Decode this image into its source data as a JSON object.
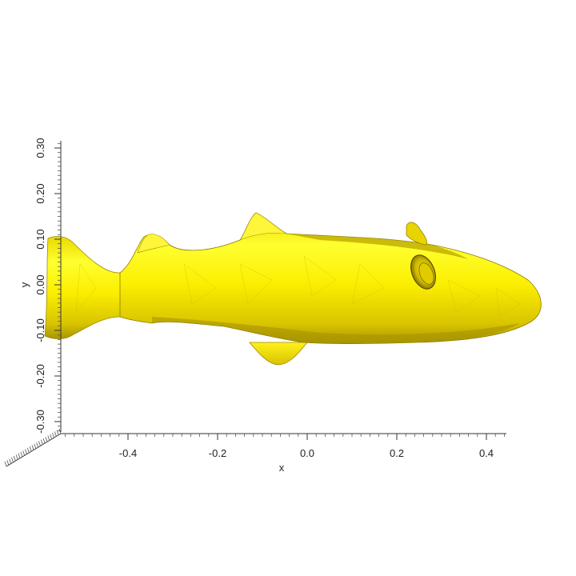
{
  "figure": {
    "object": "fish-mesh",
    "colors": {
      "mesh_fill": "#f7e600",
      "mesh_highlight": "#ffff3a",
      "mesh_shadow": "#a89400",
      "mesh_edge": "#7a6a00",
      "background": "#ffffff",
      "axis": "#333333"
    }
  },
  "axes": {
    "x": {
      "label": "x",
      "range": [
        -0.55,
        0.44
      ],
      "ticks": [
        -0.4,
        -0.2,
        0.0,
        0.2,
        0.4
      ],
      "tick_labels": [
        "-0.4",
        "-0.2",
        "0.0",
        "0.2",
        "0.4"
      ]
    },
    "y": {
      "label": "y",
      "range": [
        -0.33,
        0.32
      ],
      "ticks": [
        -0.3,
        -0.2,
        -0.1,
        0.0,
        0.1,
        0.2,
        0.3
      ],
      "tick_labels": [
        "-0.30",
        "-0.20",
        "-0.10",
        "0.00",
        "0.10",
        "0.20",
        "0.30"
      ]
    }
  }
}
